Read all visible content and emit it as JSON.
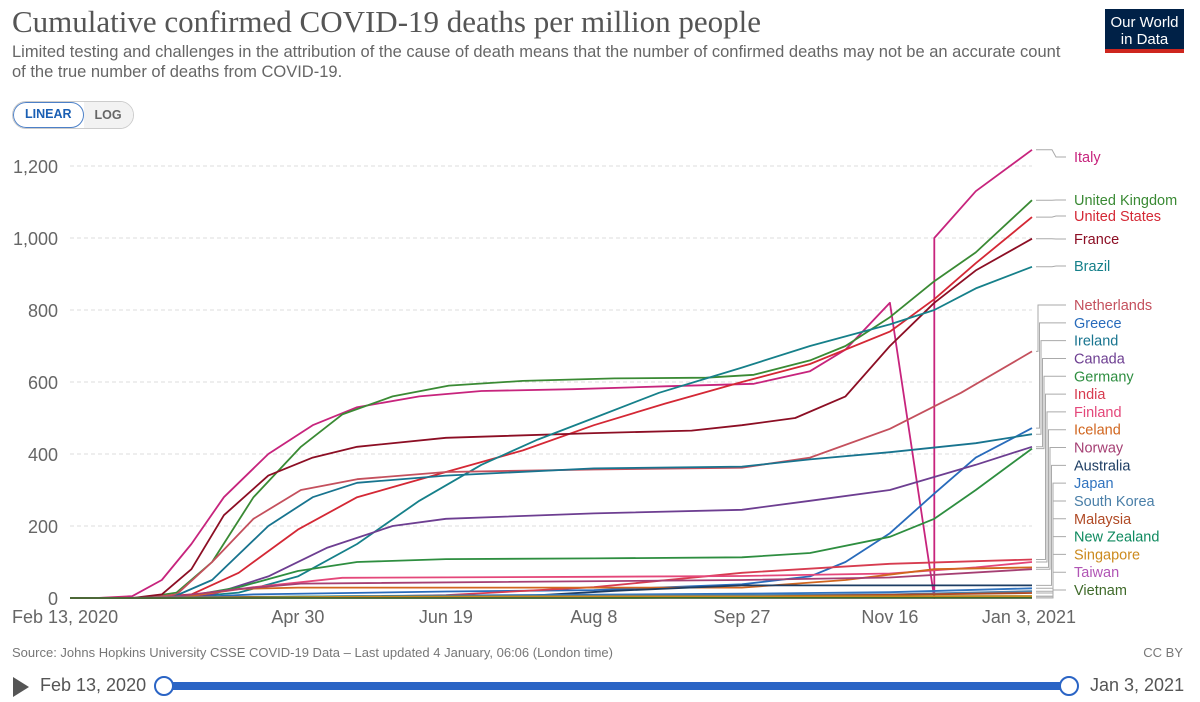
{
  "header": {
    "title": "Cumulative confirmed COVID-19 deaths per million people",
    "subtitle": "Limited testing and challenges in the attribution of the cause of death means that the number of confirmed deaths may not be an accurate count of the true number of deaths from COVID-19.",
    "logo_line1": "Our World",
    "logo_line2": "in Data"
  },
  "scale_toggle": {
    "linear": "LINEAR",
    "log": "LOG",
    "active": "linear"
  },
  "footer": {
    "source": "Source: Johns Hopkins University CSSE COVID-19 Data – Last updated 4 January, 06:06 (London time)",
    "license": "CC BY"
  },
  "timeline": {
    "start": "Feb 13, 2020",
    "end": "Jan 3, 2021"
  },
  "chart_data": {
    "type": "line",
    "title": "Cumulative confirmed COVID-19 deaths per million people",
    "x_ticks": [
      "Feb 13, 2020",
      "Apr 30",
      "Jun 19",
      "Aug 8",
      "Sep 27",
      "Nov 16",
      "Jan 3, 2021"
    ],
    "xlim": [
      "2020-02-13",
      "2021-01-03"
    ],
    "y_ticks": [
      0,
      200,
      400,
      600,
      800,
      1000,
      1200
    ],
    "y_tick_labels": [
      "0",
      "200",
      "400",
      "600",
      "800",
      "1,000",
      "1,200"
    ],
    "ylim": [
      0,
      1280
    ],
    "grid": "horizontal dashed",
    "legend": "right, end-of-line labels",
    "series": [
      {
        "name": "Italy",
        "color": "#c7247d",
        "points": [
          [
            "2020-02-13",
            0
          ],
          [
            "2020-02-22",
            0
          ],
          [
            "2020-03-05",
            5
          ],
          [
            "2020-03-15",
            50
          ],
          [
            "2020-03-25",
            150
          ],
          [
            "2020-04-05",
            280
          ],
          [
            "2020-04-20",
            400
          ],
          [
            "2020-05-05",
            480
          ],
          [
            "2020-05-20",
            530
          ],
          [
            "2020-06-10",
            560
          ],
          [
            "2020-07-01",
            575
          ],
          [
            "2020-08-01",
            580
          ],
          [
            "2020-09-01",
            588
          ],
          [
            "2020-10-01",
            595
          ],
          [
            "2020-10-20",
            630
          ],
          [
            "2020-11-01",
            690
          ],
          [
            "2020-11-16",
            820
          ],
          [
            "2020-12-01,",
            0
          ],
          [
            "2020-12-01",
            1000
          ],
          [
            "2020-12-15",
            1130
          ],
          [
            "2021-01-03",
            1245
          ]
        ]
      },
      {
        "name": "United Kingdom",
        "color": "#3a8a34",
        "points": [
          [
            "2020-02-13",
            0
          ],
          [
            "2020-03-08",
            0
          ],
          [
            "2020-03-20",
            15
          ],
          [
            "2020-04-01",
            100
          ],
          [
            "2020-04-15",
            280
          ],
          [
            "2020-05-01",
            420
          ],
          [
            "2020-05-15",
            510
          ],
          [
            "2020-06-01",
            560
          ],
          [
            "2020-06-20",
            590
          ],
          [
            "2020-07-15",
            603
          ],
          [
            "2020-08-15",
            610
          ],
          [
            "2020-09-15",
            612
          ],
          [
            "2020-10-01",
            620
          ],
          [
            "2020-10-20",
            660
          ],
          [
            "2020-11-01",
            700
          ],
          [
            "2020-11-16",
            780
          ],
          [
            "2020-12-01",
            880
          ],
          [
            "2020-12-15",
            960
          ],
          [
            "2021-01-03",
            1105
          ]
        ]
      },
      {
        "name": "United States",
        "color": "#d42835",
        "points": [
          [
            "2020-02-13",
            0
          ],
          [
            "2020-03-08",
            0
          ],
          [
            "2020-03-25",
            10
          ],
          [
            "2020-04-10",
            70
          ],
          [
            "2020-04-30",
            190
          ],
          [
            "2020-05-20",
            280
          ],
          [
            "2020-06-19",
            350
          ],
          [
            "2020-07-15",
            410
          ],
          [
            "2020-08-08",
            480
          ],
          [
            "2020-09-01",
            540
          ],
          [
            "2020-09-27",
            600
          ],
          [
            "2020-10-20",
            650
          ],
          [
            "2020-11-16",
            740
          ],
          [
            "2020-12-01",
            830
          ],
          [
            "2020-12-15",
            930
          ],
          [
            "2021-01-03",
            1058
          ]
        ]
      },
      {
        "name": "France",
        "color": "#8c0e24",
        "points": [
          [
            "2020-02-13",
            0
          ],
          [
            "2020-03-05",
            0
          ],
          [
            "2020-03-15",
            10
          ],
          [
            "2020-03-25",
            80
          ],
          [
            "2020-04-05",
            230
          ],
          [
            "2020-04-20",
            340
          ],
          [
            "2020-05-05",
            390
          ],
          [
            "2020-05-20",
            420
          ],
          [
            "2020-06-19",
            445
          ],
          [
            "2020-08-08",
            458
          ],
          [
            "2020-09-10",
            465
          ],
          [
            "2020-09-27",
            480
          ],
          [
            "2020-10-15",
            500
          ],
          [
            "2020-11-01",
            560
          ],
          [
            "2020-11-16",
            700
          ],
          [
            "2020-12-01",
            820
          ],
          [
            "2020-12-15",
            910
          ],
          [
            "2021-01-03",
            998
          ]
        ]
      },
      {
        "name": "Brazil",
        "color": "#16808a",
        "points": [
          [
            "2020-02-13",
            0
          ],
          [
            "2020-03-20",
            0
          ],
          [
            "2020-04-10",
            15
          ],
          [
            "2020-04-30",
            60
          ],
          [
            "2020-05-20",
            150
          ],
          [
            "2020-06-10",
            270
          ],
          [
            "2020-07-01",
            370
          ],
          [
            "2020-07-20",
            440
          ],
          [
            "2020-08-08",
            500
          ],
          [
            "2020-08-30",
            570
          ],
          [
            "2020-09-27",
            640
          ],
          [
            "2020-10-20",
            700
          ],
          [
            "2020-11-16",
            760
          ],
          [
            "2020-12-01",
            800
          ],
          [
            "2020-12-15",
            860
          ],
          [
            "2021-01-03",
            920
          ]
        ]
      },
      {
        "name": "Netherlands",
        "color": "#c4505d",
        "points": [
          [
            "2020-02-13",
            0
          ],
          [
            "2020-03-10",
            0
          ],
          [
            "2020-03-20",
            10
          ],
          [
            "2020-04-01",
            100
          ],
          [
            "2020-04-15",
            220
          ],
          [
            "2020-05-01",
            300
          ],
          [
            "2020-05-20",
            330
          ],
          [
            "2020-06-19",
            350
          ],
          [
            "2020-08-08",
            357
          ],
          [
            "2020-09-27",
            362
          ],
          [
            "2020-10-20",
            390
          ],
          [
            "2020-11-16",
            470
          ],
          [
            "2020-12-10",
            570
          ],
          [
            "2021-01-03",
            685
          ]
        ]
      },
      {
        "name": "Greece",
        "color": "#286bbb",
        "points": [
          [
            "2020-02-13",
            0
          ],
          [
            "2020-03-20",
            0
          ],
          [
            "2020-04-15",
            10
          ],
          [
            "2020-06-19",
            18
          ],
          [
            "2020-08-08",
            22
          ],
          [
            "2020-09-27",
            38
          ],
          [
            "2020-10-20",
            60
          ],
          [
            "2020-11-01",
            100
          ],
          [
            "2020-11-16",
            180
          ],
          [
            "2020-12-01",
            290
          ],
          [
            "2020-12-15",
            390
          ],
          [
            "2021-01-03",
            472
          ]
        ]
      },
      {
        "name": "Ireland",
        "color": "#18748f",
        "points": [
          [
            "2020-02-13",
            0
          ],
          [
            "2020-03-18",
            0
          ],
          [
            "2020-04-01",
            50
          ],
          [
            "2020-04-20",
            200
          ],
          [
            "2020-05-05",
            280
          ],
          [
            "2020-05-20",
            320
          ],
          [
            "2020-06-19",
            340
          ],
          [
            "2020-08-08",
            360
          ],
          [
            "2020-09-27",
            365
          ],
          [
            "2020-10-20",
            385
          ],
          [
            "2020-11-16",
            405
          ],
          [
            "2020-12-15",
            430
          ],
          [
            "2021-01-03",
            455
          ]
        ]
      },
      {
        "name": "Canada",
        "color": "#6d3e91",
        "points": [
          [
            "2020-02-13",
            0
          ],
          [
            "2020-03-15",
            0
          ],
          [
            "2020-04-01",
            10
          ],
          [
            "2020-04-20",
            60
          ],
          [
            "2020-05-10",
            140
          ],
          [
            "2020-06-01",
            200
          ],
          [
            "2020-06-19",
            220
          ],
          [
            "2020-08-08",
            235
          ],
          [
            "2020-09-27",
            245
          ],
          [
            "2020-10-20",
            270
          ],
          [
            "2020-11-16",
            300
          ],
          [
            "2020-12-15",
            370
          ],
          [
            "2021-01-03",
            420
          ]
        ]
      },
      {
        "name": "Germany",
        "color": "#2e8e40",
        "points": [
          [
            "2020-02-13",
            0
          ],
          [
            "2020-03-20",
            0
          ],
          [
            "2020-04-10",
            30
          ],
          [
            "2020-04-30",
            75
          ],
          [
            "2020-05-20",
            100
          ],
          [
            "2020-06-19",
            108
          ],
          [
            "2020-08-08",
            110
          ],
          [
            "2020-09-27",
            113
          ],
          [
            "2020-10-20",
            125
          ],
          [
            "2020-11-16",
            170
          ],
          [
            "2020-12-01",
            220
          ],
          [
            "2020-12-15",
            300
          ],
          [
            "2021-01-03",
            415
          ]
        ]
      },
      {
        "name": "India",
        "color": "#d73c50",
        "points": [
          [
            "2020-02-13",
            0
          ],
          [
            "2020-04-01",
            0
          ],
          [
            "2020-05-01",
            1
          ],
          [
            "2020-06-19",
            8
          ],
          [
            "2020-08-08",
            30
          ],
          [
            "2020-09-27",
            70
          ],
          [
            "2020-11-16",
            95
          ],
          [
            "2021-01-03",
            107
          ]
        ]
      },
      {
        "name": "Finland",
        "color": "#e4477a",
        "points": [
          [
            "2020-02-13",
            0
          ],
          [
            "2020-03-20",
            0
          ],
          [
            "2020-04-15",
            30
          ],
          [
            "2020-05-15",
            56
          ],
          [
            "2020-08-08",
            59
          ],
          [
            "2020-09-27",
            61
          ],
          [
            "2020-11-16",
            68
          ],
          [
            "2020-12-15",
            85
          ],
          [
            "2021-01-03",
            100
          ]
        ]
      },
      {
        "name": "Iceland",
        "color": "#d1661f",
        "points": [
          [
            "2020-02-13",
            0
          ],
          [
            "2020-03-20",
            0
          ],
          [
            "2020-04-10",
            25
          ],
          [
            "2020-04-30",
            29
          ],
          [
            "2020-09-27",
            29
          ],
          [
            "2020-11-01",
            50
          ],
          [
            "2020-12-01",
            80
          ],
          [
            "2021-01-03",
            85
          ]
        ]
      },
      {
        "name": "Norway",
        "color": "#a53f73",
        "points": [
          [
            "2020-02-13",
            0
          ],
          [
            "2020-03-15",
            0
          ],
          [
            "2020-04-10",
            25
          ],
          [
            "2020-05-01",
            40
          ],
          [
            "2020-09-27",
            50
          ],
          [
            "2020-11-16",
            57
          ],
          [
            "2021-01-03",
            80
          ]
        ]
      },
      {
        "name": "Australia",
        "color": "#1d3d63",
        "points": [
          [
            "2020-02-13",
            0
          ],
          [
            "2020-03-15",
            0
          ],
          [
            "2020-04-15",
            2
          ],
          [
            "2020-07-15",
            5
          ],
          [
            "2020-08-15",
            20
          ],
          [
            "2020-09-27",
            35
          ],
          [
            "2021-01-03",
            35
          ]
        ]
      },
      {
        "name": "Japan",
        "color": "#3073bf",
        "points": [
          [
            "2020-02-13",
            0
          ],
          [
            "2020-03-25",
            0
          ],
          [
            "2020-05-15",
            5
          ],
          [
            "2020-09-27",
            12
          ],
          [
            "2020-11-16",
            16
          ],
          [
            "2021-01-03",
            27
          ]
        ]
      },
      {
        "name": "South Korea",
        "color": "#4a7fa8",
        "points": [
          [
            "2020-02-13",
            0
          ],
          [
            "2020-03-01",
            0
          ],
          [
            "2020-04-01",
            3
          ],
          [
            "2020-06-19",
            5
          ],
          [
            "2020-09-27",
            8
          ],
          [
            "2020-11-16",
            10
          ],
          [
            "2021-01-03",
            19
          ]
        ]
      },
      {
        "name": "Malaysia",
        "color": "#b04a25",
        "points": [
          [
            "2020-02-13",
            0
          ],
          [
            "2020-03-15",
            0
          ],
          [
            "2020-04-15",
            3
          ],
          [
            "2020-09-27",
            4
          ],
          [
            "2020-11-16",
            9
          ],
          [
            "2021-01-03",
            14
          ]
        ]
      },
      {
        "name": "New Zealand",
        "color": "#0f8a5f",
        "points": [
          [
            "2020-02-13",
            0
          ],
          [
            "2020-03-25",
            0
          ],
          [
            "2020-05-01",
            4
          ],
          [
            "2021-01-03",
            5
          ]
        ]
      },
      {
        "name": "Singapore",
        "color": "#cc8a1e",
        "points": [
          [
            "2020-02-13",
            0
          ],
          [
            "2020-04-01",
            1
          ],
          [
            "2020-06-01",
            4
          ],
          [
            "2021-01-03",
            5
          ]
        ]
      },
      {
        "name": "Taiwan",
        "color": "#b155b5",
        "points": [
          [
            "2020-02-13",
            0
          ],
          [
            "2020-04-01",
            0.2
          ],
          [
            "2021-01-03",
            0.3
          ]
        ]
      },
      {
        "name": "Vietnam",
        "color": "#3f6a2a",
        "points": [
          [
            "2020-02-13",
            0
          ],
          [
            "2020-08-01",
            0
          ],
          [
            "2020-08-31",
            0.35
          ],
          [
            "2021-01-03",
            0.36
          ]
        ]
      }
    ]
  }
}
